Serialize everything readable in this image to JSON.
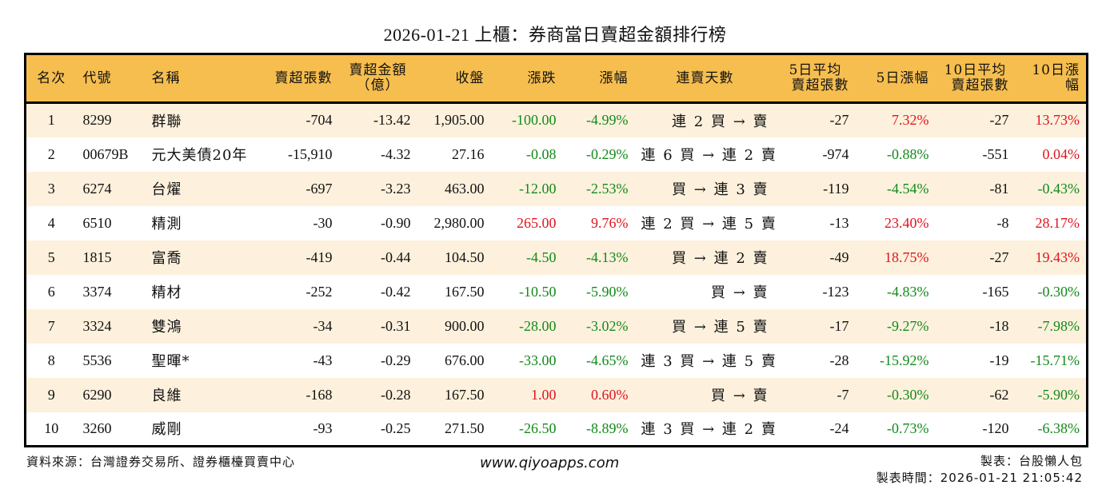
{
  "title": "2026-01-21 上櫃：券商當日賣超金額排行榜",
  "colors": {
    "header_bg": "#F6BE4F",
    "row_alt_bg": "#FDF1DD",
    "up": "#E0141E",
    "down": "#138A1A",
    "border": "#000000"
  },
  "table": {
    "headers": {
      "rank": "名次",
      "code": "代號",
      "name": "名稱",
      "net_sell_lots": "賣超張數",
      "net_sell_amount_l1": "賣超金額",
      "net_sell_amount_l2": "（億）",
      "close": "收盤",
      "change": "漲跌",
      "change_pct": "漲幅",
      "streak": "連賣天數",
      "avg5_l1": "5日平均",
      "avg5_l2": "賣超張數",
      "pct5": "5日漲幅",
      "avg10_l1": "10日平均",
      "avg10_l2": "賣超張數",
      "pct10": "10日漲幅"
    },
    "rows": [
      {
        "rank": "1",
        "code": "8299",
        "name": "群聯",
        "lots": "-704",
        "amount": "-13.42",
        "close": "1,905.00",
        "change": "-100.00",
        "change_dir": "down",
        "pct": "-4.99%",
        "pct_dir": "down",
        "streak": "連 2 買 → 賣",
        "avg5": "-27",
        "pct5": "7.32%",
        "pct5_dir": "up",
        "avg10": "-27",
        "pct10": "13.73%",
        "pct10_dir": "up"
      },
      {
        "rank": "2",
        "code": "00679B",
        "name": "元大美債20年",
        "lots": "-15,910",
        "amount": "-4.32",
        "close": "27.16",
        "change": "-0.08",
        "change_dir": "down",
        "pct": "-0.29%",
        "pct_dir": "down",
        "streak": "連 6 買 → 連 2 賣",
        "avg5": "-974",
        "pct5": "-0.88%",
        "pct5_dir": "down",
        "avg10": "-551",
        "pct10": "0.04%",
        "pct10_dir": "up"
      },
      {
        "rank": "3",
        "code": "6274",
        "name": "台燿",
        "lots": "-697",
        "amount": "-3.23",
        "close": "463.00",
        "change": "-12.00",
        "change_dir": "down",
        "pct": "-2.53%",
        "pct_dir": "down",
        "streak": "買 → 連 3 賣",
        "avg5": "-119",
        "pct5": "-4.54%",
        "pct5_dir": "down",
        "avg10": "-81",
        "pct10": "-0.43%",
        "pct10_dir": "down"
      },
      {
        "rank": "4",
        "code": "6510",
        "name": "精測",
        "lots": "-30",
        "amount": "-0.90",
        "close": "2,980.00",
        "change": "265.00",
        "change_dir": "up",
        "pct": "9.76%",
        "pct_dir": "up",
        "streak": "連 2 買 → 連 5 賣",
        "avg5": "-13",
        "pct5": "23.40%",
        "pct5_dir": "up",
        "avg10": "-8",
        "pct10": "28.17%",
        "pct10_dir": "up"
      },
      {
        "rank": "5",
        "code": "1815",
        "name": "富喬",
        "lots": "-419",
        "amount": "-0.44",
        "close": "104.50",
        "change": "-4.50",
        "change_dir": "down",
        "pct": "-4.13%",
        "pct_dir": "down",
        "streak": "買 → 連 2 賣",
        "avg5": "-49",
        "pct5": "18.75%",
        "pct5_dir": "up",
        "avg10": "-27",
        "pct10": "19.43%",
        "pct10_dir": "up"
      },
      {
        "rank": "6",
        "code": "3374",
        "name": "精材",
        "lots": "-252",
        "amount": "-0.42",
        "close": "167.50",
        "change": "-10.50",
        "change_dir": "down",
        "pct": "-5.90%",
        "pct_dir": "down",
        "streak": "買 → 賣",
        "avg5": "-123",
        "pct5": "-4.83%",
        "pct5_dir": "down",
        "avg10": "-165",
        "pct10": "-0.30%",
        "pct10_dir": "down"
      },
      {
        "rank": "7",
        "code": "3324",
        "name": "雙鴻",
        "lots": "-34",
        "amount": "-0.31",
        "close": "900.00",
        "change": "-28.00",
        "change_dir": "down",
        "pct": "-3.02%",
        "pct_dir": "down",
        "streak": "買 → 連 5 賣",
        "avg5": "-17",
        "pct5": "-9.27%",
        "pct5_dir": "down",
        "avg10": "-18",
        "pct10": "-7.98%",
        "pct10_dir": "down"
      },
      {
        "rank": "8",
        "code": "5536",
        "name": "聖暉*",
        "lots": "-43",
        "amount": "-0.29",
        "close": "676.00",
        "change": "-33.00",
        "change_dir": "down",
        "pct": "-4.65%",
        "pct_dir": "down",
        "streak": "連 3 買 → 連 5 賣",
        "avg5": "-28",
        "pct5": "-15.92%",
        "pct5_dir": "down",
        "avg10": "-19",
        "pct10": "-15.71%",
        "pct10_dir": "down"
      },
      {
        "rank": "9",
        "code": "6290",
        "name": "良維",
        "lots": "-168",
        "amount": "-0.28",
        "close": "167.50",
        "change": "1.00",
        "change_dir": "up",
        "pct": "0.60%",
        "pct_dir": "up",
        "streak": "買 → 賣",
        "avg5": "-7",
        "pct5": "-0.30%",
        "pct5_dir": "down",
        "avg10": "-62",
        "pct10": "-5.90%",
        "pct10_dir": "down"
      },
      {
        "rank": "10",
        "code": "3260",
        "name": "威剛",
        "lots": "-93",
        "amount": "-0.25",
        "close": "271.50",
        "change": "-26.50",
        "change_dir": "down",
        "pct": "-8.89%",
        "pct_dir": "down",
        "streak": "連 3 買 → 連 2 賣",
        "avg5": "-24",
        "pct5": "-0.73%",
        "pct5_dir": "down",
        "avg10": "-120",
        "pct10": "-6.38%",
        "pct10_dir": "down"
      }
    ]
  },
  "footer": {
    "source": "資料來源：台灣證券交易所、證券櫃檯買賣中心",
    "website": "www.qiyoapps.com",
    "author": "製表：台股懶人包",
    "timestamp": "製表時間：2026-01-21 21:05:42"
  }
}
